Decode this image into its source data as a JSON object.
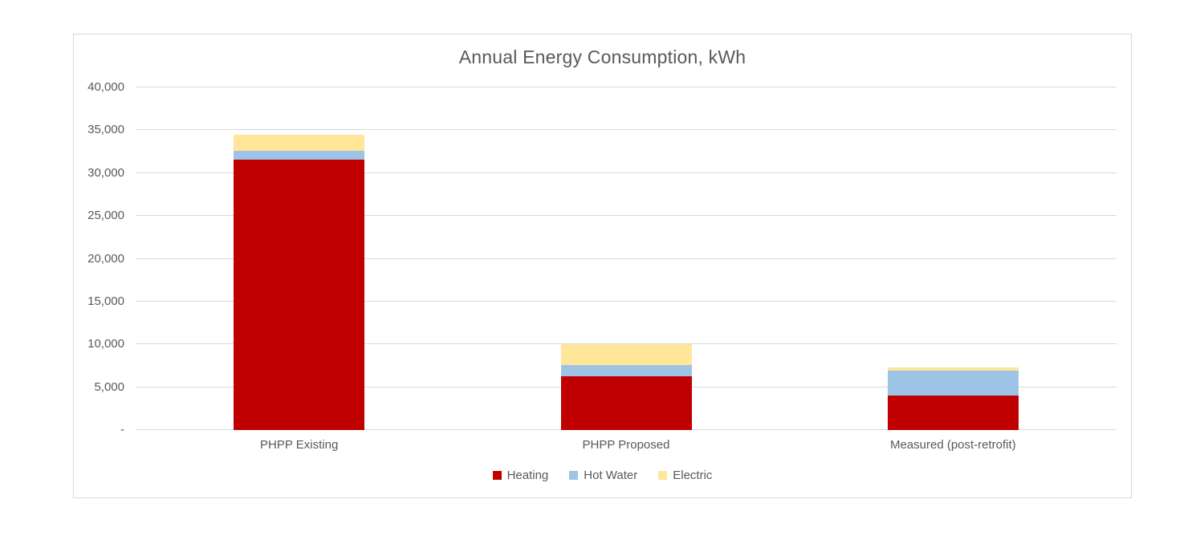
{
  "chart_data": {
    "type": "bar",
    "stacked": true,
    "title": "Annual Energy Consumption, kWh",
    "categories": [
      "PHPP Existing",
      "PHPP Proposed",
      "Measured (post-retrofit)"
    ],
    "series": [
      {
        "name": "Heating",
        "color": "#C00000",
        "values": [
          31600,
          6300,
          4000
        ]
      },
      {
        "name": "Hot Water",
        "color": "#9DC3E6",
        "values": [
          1000,
          1300,
          2900
        ]
      },
      {
        "name": "Electric",
        "color": "#FFE699",
        "values": [
          1900,
          2400,
          400
        ]
      }
    ],
    "totals": [
      34500,
      10000,
      7300
    ],
    "ylim": [
      0,
      40000
    ],
    "ytick_step": 5000,
    "ytick_labels_bottom_to_top": [
      "-",
      "5,000",
      "10,000",
      "15,000",
      "20,000",
      "25,000",
      "30,000",
      "35,000",
      "40,000"
    ],
    "xlabel": "",
    "ylabel": "",
    "grid": true,
    "legend_position": "bottom",
    "colors": {
      "gridline": "#d9d9d9",
      "chart_border": "#d7d7d7",
      "text": "#595959",
      "background": "#ffffff"
    }
  }
}
